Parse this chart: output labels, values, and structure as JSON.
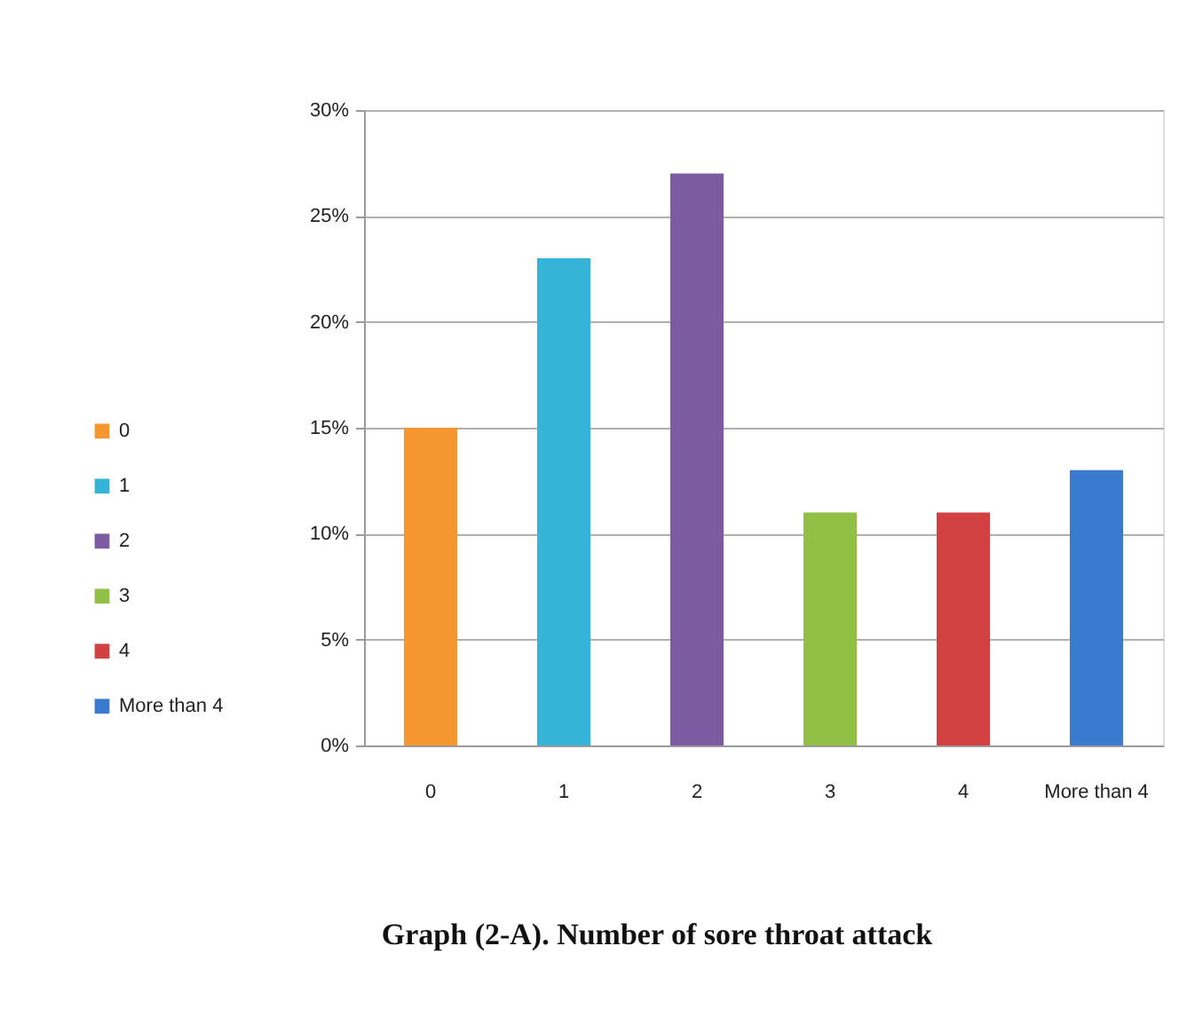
{
  "chart_data": {
    "type": "bar",
    "title": "Graph (2-A). Number of sore throat attack",
    "categories": [
      "0",
      "1",
      "2",
      "3",
      "4",
      "More than 4"
    ],
    "series": [
      {
        "name": "0",
        "color": "#f5962e",
        "values": [
          15,
          null,
          null,
          null,
          null,
          null
        ]
      },
      {
        "name": "1",
        "color": "#36b4d8",
        "values": [
          null,
          23,
          null,
          null,
          null,
          null
        ]
      },
      {
        "name": "2",
        "color": "#7d5ba3",
        "values": [
          null,
          null,
          27,
          null,
          null,
          null
        ]
      },
      {
        "name": "3",
        "color": "#92bf45",
        "values": [
          null,
          null,
          null,
          11,
          null,
          null
        ]
      },
      {
        "name": "4",
        "color": "#d24141",
        "values": [
          null,
          null,
          null,
          null,
          11,
          null
        ]
      },
      {
        "name": "More than 4",
        "color": "#3a7bd0",
        "values": [
          null,
          null,
          null,
          null,
          null,
          13
        ]
      }
    ],
    "ylim": [
      0,
      30
    ],
    "yticks": [
      {
        "value": 0,
        "label": "0%"
      },
      {
        "value": 5,
        "label": "5%"
      },
      {
        "value": 10,
        "label": "10%"
      },
      {
        "value": 15,
        "label": "15%"
      },
      {
        "value": 20,
        "label": "20%"
      },
      {
        "value": 25,
        "label": "25%"
      },
      {
        "value": 30,
        "label": "30%"
      }
    ],
    "grid": "y",
    "legend": "left"
  }
}
